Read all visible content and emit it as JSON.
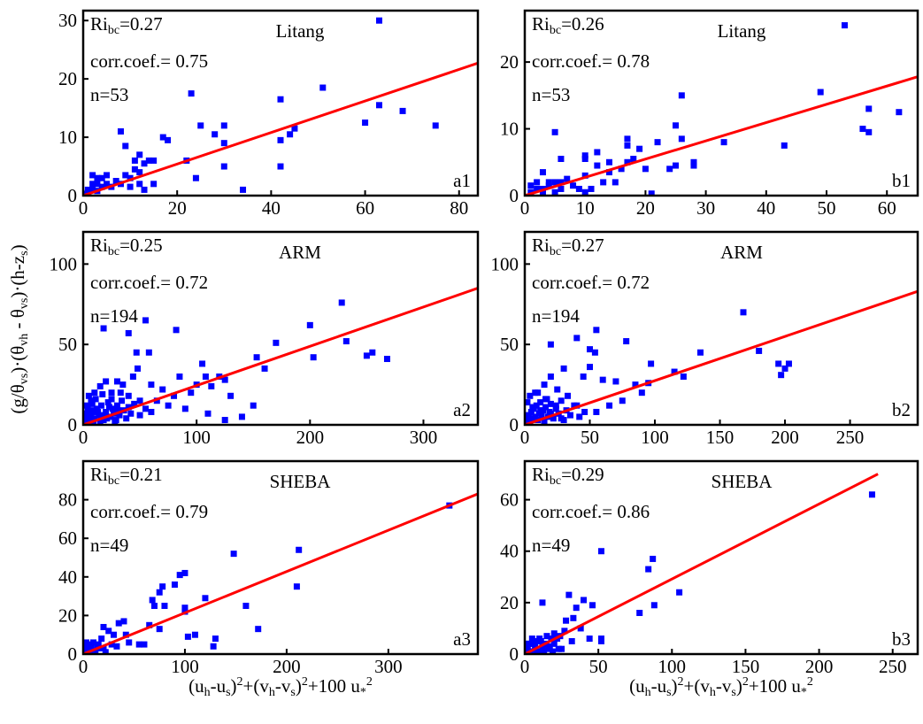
{
  "ylabel": [
    {
      "text": "(g/θ"
    },
    {
      "text": "vs",
      "pos": "sub"
    },
    {
      "text": ")·(θ"
    },
    {
      "text": "vh",
      "pos": "sub"
    },
    {
      "text": " - θ"
    },
    {
      "text": "vs",
      "pos": "sub"
    },
    {
      "text": ")·(h-z"
    },
    {
      "text": "s",
      "pos": "sub"
    },
    {
      "text": ")"
    }
  ],
  "chart_data": [
    {
      "type": "scatter",
      "panel": "a1",
      "station": "Litang",
      "ri": [
        {
          "text": "Ri"
        },
        {
          "text": "bc",
          "pos": "sub"
        },
        {
          "text": "=0.27"
        }
      ],
      "corr": "corr.coef.= 0.75",
      "n": "n=53",
      "xlim": [
        0,
        84
      ],
      "ylim": [
        0,
        31.7
      ],
      "xticks": [
        0,
        20,
        40,
        60,
        80
      ],
      "yticks": [
        0,
        10,
        20,
        30
      ],
      "color": "#0000ff",
      "x": [
        63,
        23,
        51,
        42,
        63,
        68,
        60,
        75,
        25,
        30,
        8,
        17,
        28,
        45,
        44,
        18,
        30,
        42,
        9,
        12,
        14,
        13,
        15,
        22,
        11,
        30,
        42,
        24,
        34,
        2,
        3,
        4,
        5,
        2,
        3,
        4,
        5,
        1,
        2,
        6,
        8,
        9,
        10,
        10,
        12,
        13,
        15,
        1,
        0.5,
        3,
        7,
        12,
        11
      ],
      "y": [
        30,
        17.5,
        18.5,
        16.5,
        15.5,
        14.5,
        12.5,
        12,
        12,
        12,
        11,
        10,
        10.5,
        11.5,
        10.5,
        9.5,
        9,
        9.5,
        8.5,
        7,
        6,
        5.5,
        6,
        6,
        4.5,
        5,
        5,
        3,
        1,
        3.5,
        3,
        3,
        3.5,
        2,
        2,
        1.5,
        2,
        1,
        1,
        1.5,
        2,
        3.5,
        3,
        1.5,
        2,
        1,
        2,
        0.5,
        0.3,
        0.8,
        2.5,
        4,
        6
      ],
      "fit": {
        "color": "#ff0000",
        "x": [
          0,
          84
        ],
        "y": [
          0,
          22.7
        ]
      }
    },
    {
      "type": "scatter",
      "panel": "b1",
      "station": "Litang",
      "ri": [
        {
          "text": "Ri"
        },
        {
          "text": "bc",
          "pos": "sub"
        },
        {
          "text": "=0.26"
        }
      ],
      "corr": "corr.coef.= 0.78",
      "n": "n=53",
      "xlim": [
        0,
        65.1
      ],
      "ylim": [
        0,
        27.7
      ],
      "xticks": [
        0,
        10,
        20,
        30,
        40,
        50,
        60
      ],
      "yticks": [
        0,
        10,
        20
      ],
      "color": "#0000ff",
      "x": [
        53,
        26,
        49,
        57,
        62,
        25,
        56,
        57,
        5,
        17,
        22,
        33,
        26,
        43,
        12,
        10,
        17,
        28,
        28,
        25,
        14,
        17,
        6,
        10,
        12,
        16,
        10,
        13,
        15,
        14,
        21,
        11,
        10,
        3,
        4,
        5,
        6,
        3,
        2,
        1,
        4,
        6,
        7,
        8,
        9,
        2,
        1,
        3,
        5,
        20,
        19,
        18,
        24
      ],
      "y": [
        25.5,
        15,
        15.5,
        13,
        12.5,
        10.5,
        10,
        9.5,
        9.5,
        8.5,
        8,
        8,
        8.5,
        7.5,
        6.5,
        6,
        7.5,
        5,
        4.5,
        4.5,
        5,
        5,
        5.5,
        5.5,
        4.5,
        4,
        3,
        2,
        2,
        3.5,
        0.3,
        1,
        0.5,
        3.5,
        2,
        2,
        2,
        1,
        1,
        0.5,
        1.5,
        1,
        2.5,
        1.5,
        1,
        2,
        1.5,
        0.5,
        0.5,
        4,
        7,
        5.5,
        4
      ],
      "fit": {
        "color": "#ff0000",
        "x": [
          0,
          65.1
        ],
        "y": [
          0,
          17.8
        ]
      }
    },
    {
      "type": "scatter",
      "panel": "a2",
      "station": "ARM",
      "ri": [
        {
          "text": "Ri"
        },
        {
          "text": "bc",
          "pos": "sub"
        },
        {
          "text": "=0.25"
        }
      ],
      "corr": "corr.coef.= 0.72",
      "n": "n=194",
      "xlim": [
        0,
        348
      ],
      "ylim": [
        0,
        120
      ],
      "xticks": [
        0,
        100,
        200,
        300
      ],
      "yticks": [
        0,
        50,
        100
      ],
      "color": "#0000ff",
      "x": [
        228,
        200,
        232,
        170,
        153,
        203,
        160,
        250,
        255,
        268,
        82,
        55,
        18,
        40,
        105,
        108,
        120,
        125,
        100,
        113,
        95,
        80,
        70,
        60,
        48,
        44,
        30,
        20,
        35,
        10,
        15,
        25,
        40,
        50,
        65,
        75,
        90,
        110,
        125,
        140,
        150,
        130,
        85,
        58,
        47,
        2,
        4,
        6,
        8,
        10,
        12,
        14,
        16,
        18,
        20,
        22,
        24,
        26,
        28,
        30,
        32,
        34,
        36,
        38,
        40,
        42,
        45,
        50,
        55,
        60,
        3,
        5,
        7,
        9,
        11,
        13,
        15,
        17,
        19,
        21,
        23,
        25,
        27,
        29,
        31,
        33,
        1,
        2,
        3,
        4,
        5,
        6,
        7,
        8,
        9
      ],
      "y": [
        76,
        62,
        52,
        51,
        42,
        42,
        35,
        43,
        45,
        41,
        59,
        65,
        60,
        57,
        38,
        30,
        30,
        28,
        25,
        24,
        20,
        18,
        22,
        25,
        35,
        30,
        27,
        27,
        25,
        20,
        24,
        20,
        18,
        15,
        15,
        12,
        10,
        7,
        3,
        5,
        12,
        18,
        30,
        45,
        45,
        2,
        5,
        3,
        8,
        4,
        10,
        6,
        12,
        3,
        8,
        14,
        5,
        10,
        2,
        12,
        6,
        15,
        9,
        4,
        11,
        7,
        13,
        6,
        10,
        8,
        12,
        18,
        15,
        2,
        16,
        8,
        1,
        19,
        6,
        4,
        11,
        16,
        7,
        3,
        9,
        20,
        1,
        7,
        4,
        10,
        1,
        8,
        5,
        13,
        9
      ],
      "fit": {
        "color": "#ff0000",
        "x": [
          0,
          348
        ],
        "y": [
          0,
          85
        ]
      }
    },
    {
      "type": "scatter",
      "panel": "b2",
      "station": "ARM",
      "ri": [
        {
          "text": "Ri"
        },
        {
          "text": "bc",
          "pos": "sub"
        },
        {
          "text": "=0.27"
        }
      ],
      "corr": "corr.coef.= 0.72",
      "n": "n=194",
      "xlim": [
        0,
        302
      ],
      "ylim": [
        0,
        120
      ],
      "xticks": [
        0,
        50,
        100,
        150,
        200,
        250
      ],
      "yticks": [
        0,
        50,
        100
      ],
      "color": "#0000ff",
      "x": [
        168,
        180,
        195,
        197,
        200,
        203,
        135,
        115,
        122,
        97,
        78,
        55,
        40,
        20,
        50,
        54,
        50,
        30,
        45,
        60,
        70,
        85,
        90,
        95,
        75,
        65,
        55,
        40,
        33,
        25,
        20,
        15,
        10,
        1,
        2,
        3,
        4,
        5,
        6,
        7,
        8,
        9,
        10,
        11,
        12,
        13,
        14,
        15,
        16,
        17,
        18,
        19,
        20,
        22,
        24,
        26,
        28,
        30,
        32,
        35,
        38,
        42,
        46,
        2,
        4,
        6,
        8,
        12,
        16,
        20,
        24,
        28
      ],
      "y": [
        70,
        46,
        38,
        31,
        35,
        38,
        45,
        33,
        30,
        38,
        52,
        59,
        54,
        50,
        47,
        45,
        36,
        35,
        30,
        28,
        27,
        25,
        20,
        26,
        15,
        12,
        8,
        12,
        18,
        22,
        30,
        25,
        20,
        1,
        3,
        6,
        2,
        8,
        4,
        10,
        5,
        12,
        3,
        7,
        14,
        6,
        9,
        2,
        11,
        16,
        5,
        8,
        13,
        4,
        10,
        7,
        15,
        3,
        9,
        6,
        12,
        5,
        8,
        14,
        18,
        11,
        20,
        9,
        16,
        7,
        12,
        4
      ],
      "fit": {
        "color": "#ff0000",
        "x": [
          0,
          302
        ],
        "y": [
          0,
          83
        ]
      }
    },
    {
      "type": "scatter",
      "panel": "a3",
      "station": "SHEBA",
      "ri": [
        {
          "text": "Ri"
        },
        {
          "text": "bc",
          "pos": "sub"
        },
        {
          "text": "=0.21"
        }
      ],
      "corr": "corr.coef.= 0.79",
      "n": "n=49",
      "xlim": [
        0,
        388
      ],
      "ylim": [
        0,
        100
      ],
      "xticks": [
        0,
        100,
        200,
        300
      ],
      "yticks": [
        0,
        20,
        40,
        60,
        80
      ],
      "color": "#0000ff",
      "xlabel": [
        {
          "text": "(u"
        },
        {
          "text": "h",
          "pos": "sub"
        },
        {
          "text": "-u"
        },
        {
          "text": "s",
          "pos": "sub"
        },
        {
          "text": ")"
        },
        {
          "text": "2",
          "pos": "sup"
        },
        {
          "text": "+(v"
        },
        {
          "text": "h",
          "pos": "sub"
        },
        {
          "text": "-v"
        },
        {
          "text": "s",
          "pos": "sub"
        },
        {
          "text": ")"
        },
        {
          "text": "2",
          "pos": "sup"
        },
        {
          "text": "+100 u"
        },
        {
          "text": "*",
          "pos": "sub"
        },
        {
          "text": "2",
          "pos": "sup"
        }
      ],
      "x": [
        360,
        212,
        148,
        100,
        95,
        90,
        75,
        68,
        78,
        70,
        80,
        100,
        100,
        120,
        160,
        210,
        172,
        110,
        103,
        130,
        128,
        75,
        65,
        60,
        55,
        40,
        35,
        42,
        30,
        25,
        20,
        18,
        15,
        10,
        8,
        5,
        3,
        2,
        1,
        4,
        8,
        12,
        20,
        28,
        33,
        45,
        22,
        6,
        14
      ],
      "y": [
        77,
        54,
        52,
        42,
        41,
        36,
        32,
        28,
        35,
        25,
        25,
        24,
        22,
        29,
        25,
        35,
        13,
        10,
        9,
        8,
        4,
        13,
        15,
        5,
        5,
        17,
        16,
        10,
        10,
        12,
        14,
        8,
        5,
        6,
        4,
        5,
        6,
        3,
        1,
        1,
        2,
        1,
        3,
        5,
        4,
        6,
        1,
        2,
        3
      ],
      "fit": {
        "color": "#ff0000",
        "x": [
          0,
          388
        ],
        "y": [
          0,
          83
        ]
      }
    },
    {
      "type": "scatter",
      "panel": "b3",
      "station": "SHEBA",
      "ri": [
        {
          "text": "Ri"
        },
        {
          "text": "bc",
          "pos": "sub"
        },
        {
          "text": "=0.29"
        }
      ],
      "corr": "corr.coef.= 0.86",
      "n": "n=49",
      "xlim": [
        0,
        267
      ],
      "ylim": [
        0,
        75
      ],
      "xticks": [
        0,
        50,
        100,
        150,
        200,
        250
      ],
      "yticks": [
        0,
        20,
        40,
        60
      ],
      "color": "#0000ff",
      "xlabel": [
        {
          "text": "(u"
        },
        {
          "text": "h",
          "pos": "sub"
        },
        {
          "text": "-u"
        },
        {
          "text": "s",
          "pos": "sub"
        },
        {
          "text": ")"
        },
        {
          "text": "2",
          "pos": "sup"
        },
        {
          "text": "+(v"
        },
        {
          "text": "h",
          "pos": "sub"
        },
        {
          "text": "-v"
        },
        {
          "text": "s",
          "pos": "sub"
        },
        {
          "text": ")"
        },
        {
          "text": "2",
          "pos": "sup"
        },
        {
          "text": "+100 u"
        },
        {
          "text": "*",
          "pos": "sub"
        },
        {
          "text": "2",
          "pos": "sup"
        }
      ],
      "x": [
        236,
        52,
        87,
        84,
        105,
        30,
        40,
        35,
        46,
        88,
        78,
        33,
        28,
        52,
        52,
        12,
        20,
        22,
        18,
        15,
        10,
        8,
        6,
        5,
        3,
        2,
        1,
        4,
        12,
        25,
        32,
        44,
        16,
        9,
        14,
        7,
        20,
        24,
        27,
        2,
        1,
        11,
        19,
        23,
        38,
        6,
        3,
        13,
        17
      ],
      "y": [
        62,
        40,
        37,
        33,
        24,
        23,
        21,
        18,
        19,
        19,
        16,
        14,
        13,
        6,
        5,
        20,
        8,
        6,
        6,
        7,
        6,
        5,
        4,
        6,
        4,
        2,
        1,
        1,
        3,
        2,
        5,
        6,
        2,
        1,
        4,
        3,
        4,
        7,
        9,
        4,
        3,
        5,
        1,
        2,
        10,
        1,
        1,
        1,
        3
      ],
      "fit": {
        "color": "#ff0000",
        "x": [
          0,
          240
        ],
        "y": [
          0,
          70
        ]
      }
    }
  ]
}
